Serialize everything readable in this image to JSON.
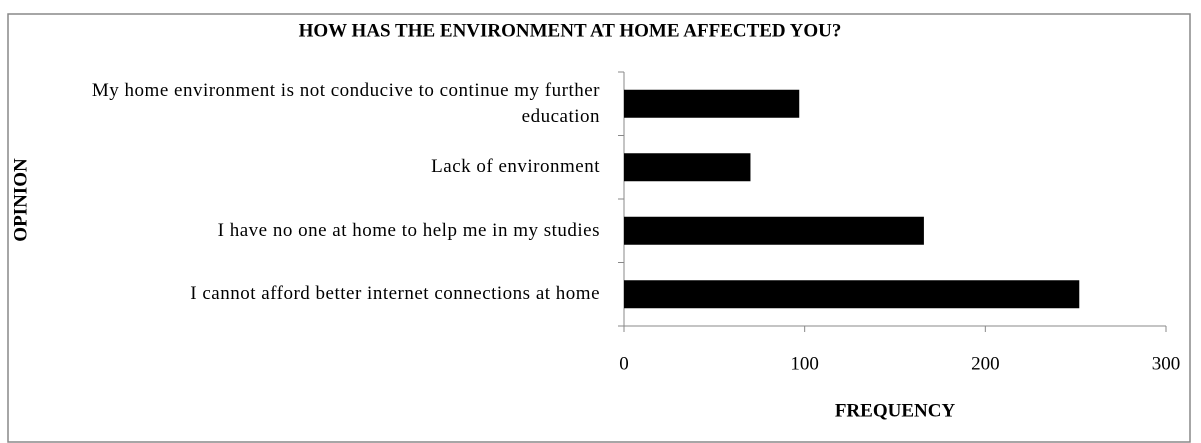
{
  "chart_data": {
    "type": "bar",
    "orientation": "horizontal",
    "title": "HOW HAS THE ENVIRONMENT  AT HOME AFFECTED YOU?",
    "x_label": "FREQUENCY",
    "y_label": "OPINION",
    "categories": [
      "My home environment is  not conducive to continue my further education",
      "Lack of environment",
      "I have no one at home to help me in my studies",
      "I cannot afford better internet connections at home"
    ],
    "values": [
      97,
      70,
      166,
      252
    ],
    "color": "#000000",
    "xlim": [
      0,
      300
    ],
    "xticks": [
      0,
      100,
      200,
      300
    ],
    "grid": false
  }
}
